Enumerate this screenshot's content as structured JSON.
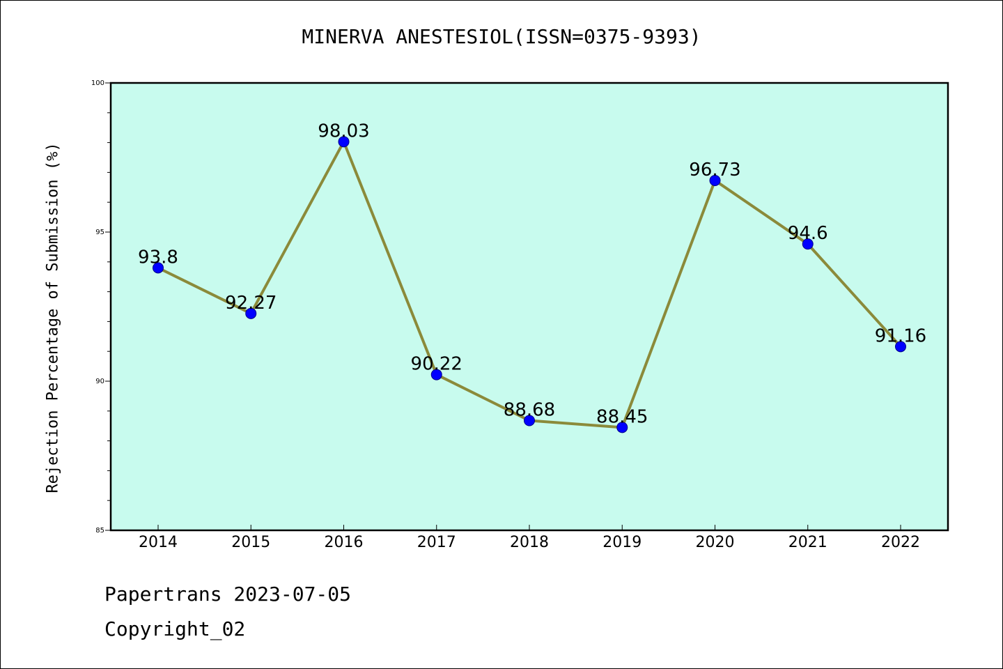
{
  "colors": {
    "plot_background": "#c8fbee",
    "line": "#8b8a3a",
    "marker": "#0000ff",
    "marker_edge": "#00008b"
  },
  "chart_data": {
    "type": "line",
    "title": "MINERVA ANESTESIOL(ISSN=0375-9393)",
    "xlabel": "",
    "ylabel": "Rejection Percentage of Submission (%)",
    "categories": [
      "2014",
      "2015",
      "2016",
      "2017",
      "2018",
      "2019",
      "2020",
      "2021",
      "2022"
    ],
    "series": [
      {
        "values": [
          93.8,
          92.27,
          98.03,
          90.22,
          88.68,
          88.45,
          96.73,
          94.6,
          91.16
        ],
        "data_labels": [
          "93.8",
          "92.27",
          "98.03",
          "90.22",
          "88.68",
          "88.45",
          "96.73",
          "94.6",
          "91.16"
        ]
      }
    ],
    "ylim": [
      85,
      100
    ],
    "yticks_labeled": [
      "85",
      "90",
      "95",
      "100"
    ],
    "yticks": [
      85,
      86,
      87,
      88,
      89,
      90,
      91,
      92,
      93,
      94,
      95,
      96,
      97,
      98,
      99,
      100
    ],
    "grid": false,
    "legend": "none"
  },
  "footer": {
    "line1": "Papertrans 2023-07-05",
    "line2": "Copyright_02"
  }
}
